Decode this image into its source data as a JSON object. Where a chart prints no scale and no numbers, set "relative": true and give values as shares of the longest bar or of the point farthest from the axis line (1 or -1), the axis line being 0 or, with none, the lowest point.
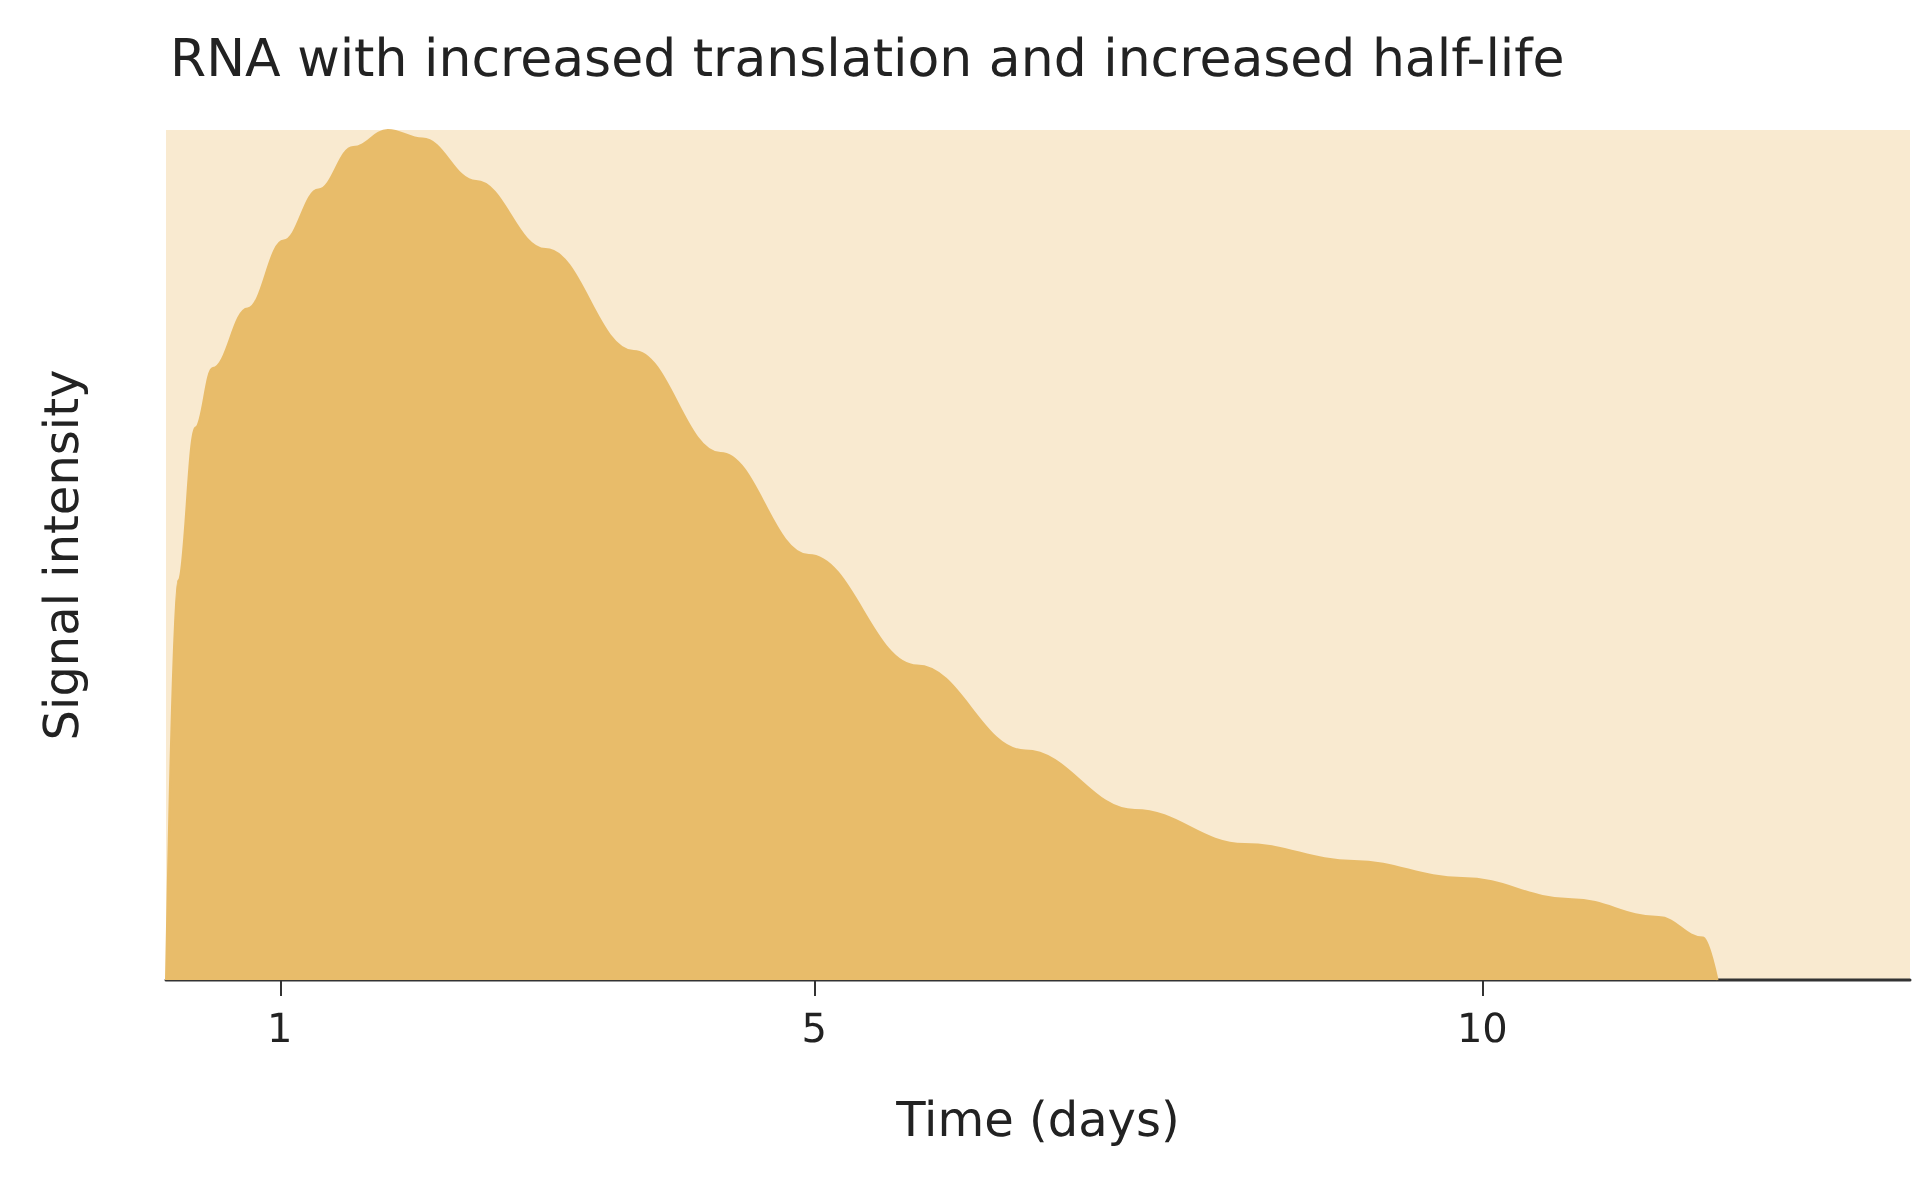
{
  "chart_data": {
    "type": "area",
    "title": "RNA with increased translation and increased half-life",
    "xlabel": "Time (days)",
    "ylabel": "Signal intensity",
    "relative": true,
    "tick_labels": "x",
    "grid": false,
    "marker": "none",
    "xlim": [
      0.15,
      13.2
    ],
    "xticks": [
      1,
      5,
      10
    ],
    "series": [
      {
        "color": "#e8bc6a",
        "x": [
          0.15,
          0.24,
          0.37,
          0.5,
          0.76,
          1.03,
          1.29,
          1.55,
          1.81,
          2.07,
          2.47,
          2.99,
          3.65,
          4.3,
          4.96,
          5.77,
          6.58,
          7.4,
          8.22,
          9.04,
          9.85,
          10.67,
          11.32,
          11.65,
          11.76
        ],
        "values": [
          0,
          0.47,
          0.65,
          0.72,
          0.79,
          0.87,
          0.93,
          0.98,
          1,
          0.99,
          0.94,
          0.86,
          0.74,
          0.62,
          0.5,
          0.37,
          0.27,
          0.2,
          0.16,
          0.14,
          0.12,
          0.095,
          0.074,
          0.05,
          0
        ]
      }
    ]
  }
}
